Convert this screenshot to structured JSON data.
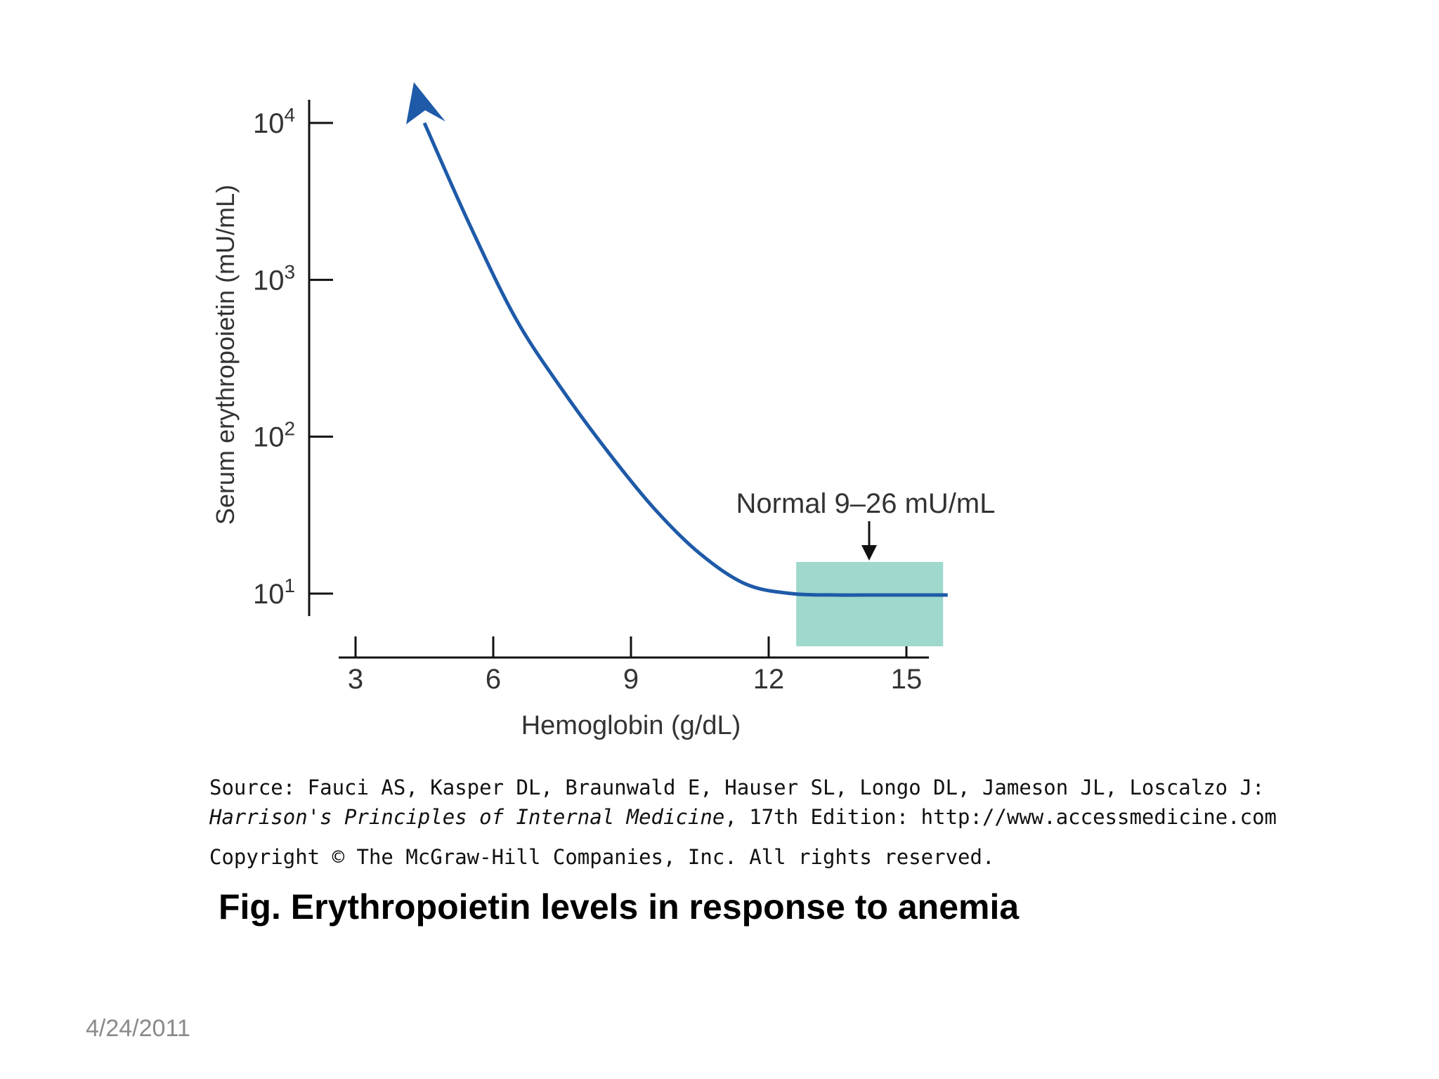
{
  "chart_data": {
    "type": "line",
    "xlabel": "Hemoglobin (g/dL)",
    "ylabel": "Serum erythropoietin (mU/mL)",
    "x_ticks": [
      "3",
      "6",
      "9",
      "12",
      "15"
    ],
    "y_ticks": [
      {
        "base": "10",
        "exp": "1"
      },
      {
        "base": "10",
        "exp": "2"
      },
      {
        "base": "10",
        "exp": "3"
      },
      {
        "base": "10",
        "exp": "4"
      }
    ],
    "xlim": [
      2.6,
      15.5
    ],
    "ylim_log10": [
      0.85,
      4.15
    ],
    "y_scale": "log",
    "series": [
      {
        "color": "#1e5aa8",
        "arrow_at_start": true,
        "x": [
          4.5,
          5.5,
          6.5,
          7.5,
          8.5,
          9.5,
          10.5,
          11.5,
          12.5,
          13.5,
          14.5,
          15.9
        ],
        "y": [
          10000,
          2200,
          560,
          200,
          80,
          35,
          18,
          11.5,
          10,
          9.8,
          9.8,
          9.8
        ]
      }
    ],
    "normal_range": {
      "label": "Normal 9–26 mU/mL",
      "x_range": [
        12.6,
        15.8
      ],
      "color": "#9fd8cc"
    },
    "grid": false,
    "legend": "none"
  },
  "source": {
    "line1": "Source: Fauci AS, Kasper DL, Braunwald E, Hauser SL, Longo DL, Jameson JL, Loscalzo J:",
    "book_title": "Harrison's Principles of Internal Medicine",
    "line2_rest": ", 17th Edition: http://www.accessmedicine.com"
  },
  "copyright": "Copyright © The McGraw-Hill Companies, Inc. All rights reserved.",
  "caption": "Fig. Erythropoietin levels in response to anemia",
  "date": "4/24/2011"
}
